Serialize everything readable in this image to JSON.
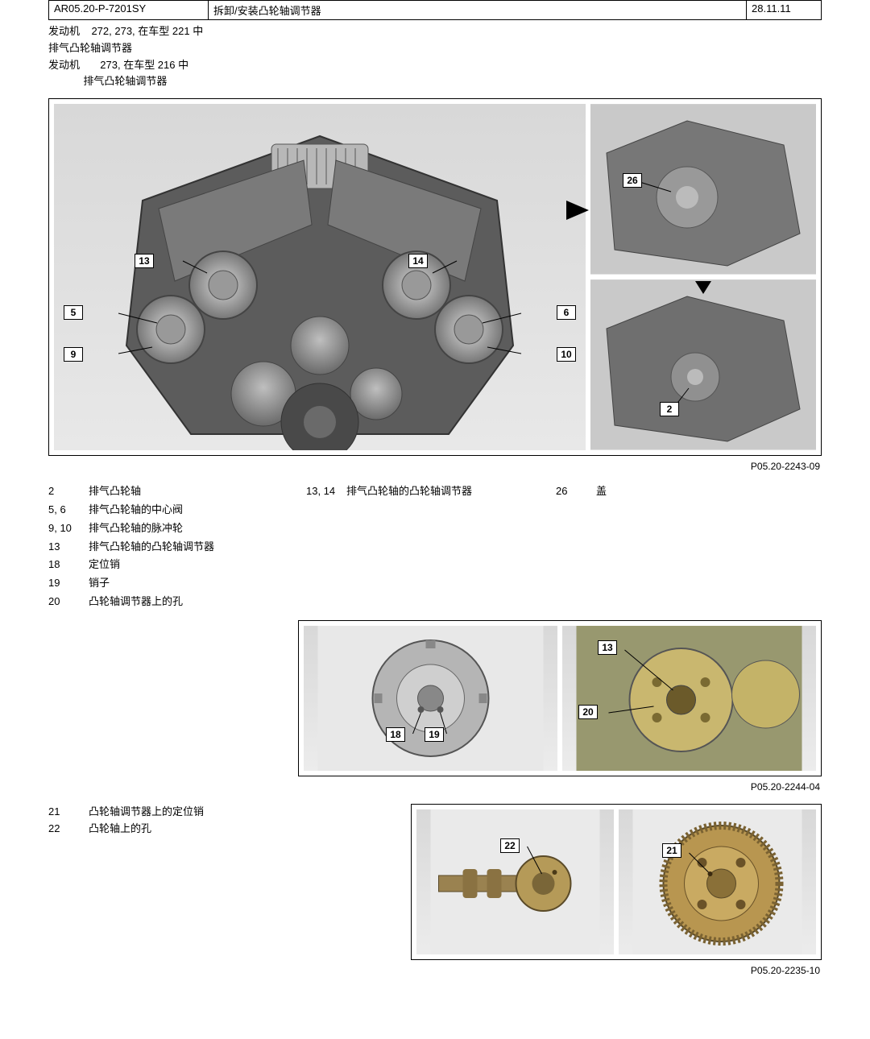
{
  "header": {
    "code": "AR05.20-P-7201SY",
    "title": "拆卸/安装凸轮轴调节器",
    "date": "28.11.11"
  },
  "meta": {
    "line1": "发动机    272, 273, 在车型 221 中",
    "line2": "排气凸轮轴调节器",
    "line3": "发动机       273, 在车型 216 中",
    "line4": "            排气凸轮轴调节器"
  },
  "figure1": {
    "ref": "P05.20-2243-09",
    "callouts_main": {
      "c5": "5",
      "c6": "6",
      "c9": "9",
      "c10": "10",
      "c13": "13",
      "c14": "14"
    },
    "callouts_side_top": {
      "c26": "26"
    },
    "callouts_side_bottom": {
      "c2": "2"
    }
  },
  "legend1": {
    "col1": [
      {
        "n": "2",
        "t": "排气凸轮轴"
      },
      {
        "n": "5, 6",
        "t": "排气凸轮轴的中心阀"
      },
      {
        "n": "9, 10",
        "t": "排气凸轮轴的脉冲轮"
      },
      {
        "n": "13",
        "t": "排气凸轮轴的凸轮轴调节器"
      },
      {
        "n": "18",
        "t": "定位销"
      },
      {
        "n": "19",
        "t": "销子"
      },
      {
        "n": "20",
        "t": "凸轮轴调节器上的孔"
      }
    ],
    "col2": [
      {
        "n": "13, 14",
        "t": "排气凸轮轴的凸轮轴调节器"
      }
    ],
    "col3": [
      {
        "n": "26",
        "t": "盖"
      }
    ]
  },
  "figure2": {
    "ref": "P05.20-2244-04",
    "left": {
      "c18": "18",
      "c19": "19"
    },
    "right": {
      "c13": "13",
      "c20": "20"
    }
  },
  "legend3": [
    {
      "n": "21",
      "t": "凸轮轴调节器上的定位销"
    },
    {
      "n": "22",
      "t": "凸轮轴上的孔"
    }
  ],
  "figure3": {
    "ref": "P05.20-2235-10",
    "left": {
      "c22": "22"
    },
    "right": {
      "c21": "21"
    }
  }
}
